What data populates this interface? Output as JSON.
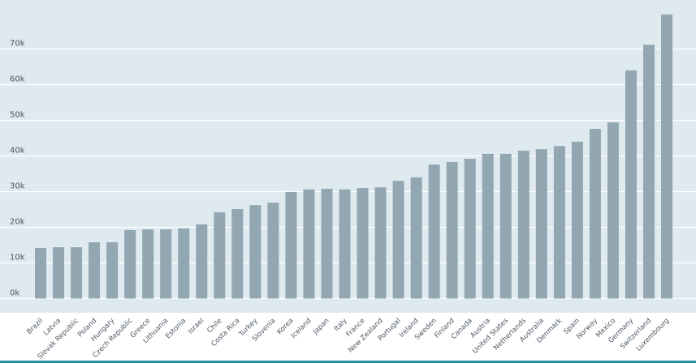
{
  "chart_data": {
    "type": "bar",
    "title": "",
    "xlabel": "",
    "ylabel": "",
    "ylim": [
      0,
      80000
    ],
    "yticks": [
      0,
      10000,
      20000,
      30000,
      40000,
      50000,
      60000,
      70000
    ],
    "ytick_labels": [
      "0k",
      "10k",
      "20k",
      "30k",
      "40k",
      "50k",
      "60k",
      "70k"
    ],
    "grid": true,
    "legend": "none",
    "bar_color": "#92a7b2",
    "background_color": "#dee9f0",
    "categories": [
      "Brazil",
      "Latvia",
      "Slovak Republic",
      "Poland",
      "Hungary",
      "Czech Republic",
      "Greece",
      "Lithuania",
      "Estonia",
      "Israel",
      "Chile",
      "Costa Rica",
      "Turkey",
      "Slovenia",
      "Korea",
      "Iceland",
      "Japan",
      "Italy",
      "France",
      "New Zealand",
      "Portugal",
      "Ireland",
      "Sweden",
      "Finland",
      "Canada",
      "Austria",
      "United States",
      "Netherlands",
      "Australia",
      "Denmark",
      "Spain",
      "Norway",
      "Mexico",
      "Germany",
      "Switzerland",
      "Luxembourg"
    ],
    "values": [
      14200,
      14400,
      14400,
      15800,
      15800,
      19200,
      19400,
      19400,
      19700,
      20800,
      24200,
      25100,
      26200,
      26900,
      29900,
      30600,
      30800,
      30600,
      31000,
      31200,
      33000,
      34000,
      37600,
      38300,
      39200,
      40600,
      40600,
      41500,
      41900,
      42800,
      44000,
      47600,
      49400,
      64000,
      71200,
      79700
    ]
  }
}
